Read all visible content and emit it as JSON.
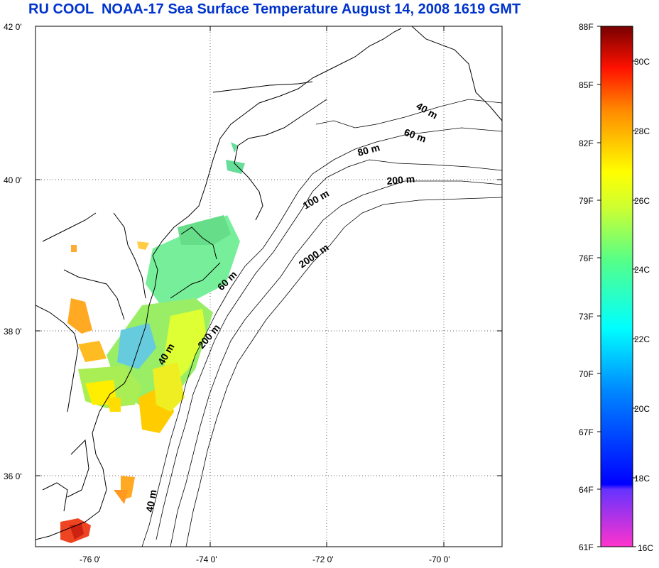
{
  "title": "RU COOL  NOAA-17 Sea Surface Temperature August 14, 2008 1619 GMT",
  "map": {
    "lat_labels": [
      "42 0'",
      "40 0'",
      "38 0'",
      "36 0'"
    ],
    "lon_labels": [
      "-76 0'",
      "-74 0'",
      "-72 0'",
      "-70 0'"
    ],
    "depth_labels": [
      "40 m",
      "60 m",
      "80 m",
      "200 m",
      "100 m",
      "2000 m",
      "60 m",
      "200 m",
      "40 m",
      "40 m"
    ]
  },
  "colorbar": {
    "f_labels": [
      "88F",
      "85F",
      "82F",
      "79F",
      "76F",
      "73F",
      "70F",
      "67F",
      "64F",
      "61F"
    ],
    "c_labels": [
      "30C",
      "28C",
      "26C",
      "24C",
      "22C",
      "20C",
      "18C",
      "16C"
    ]
  }
}
